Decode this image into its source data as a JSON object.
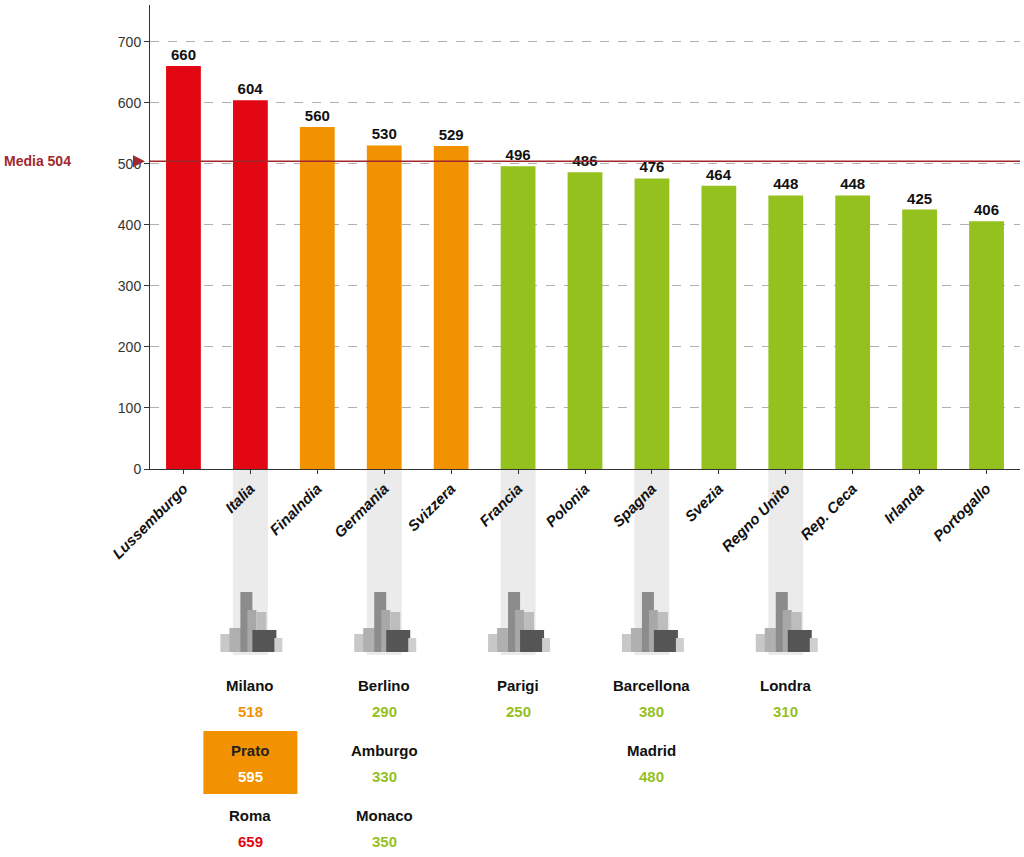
{
  "chart_data": {
    "type": "bar",
    "categories": [
      "Lussemburgo",
      "Italia",
      "Finalndia",
      "Germania",
      "Svizzera",
      "Francia",
      "Polonia",
      "Spagna",
      "Svezia",
      "Regno Unito",
      "Rep. Ceca",
      "Irlanda",
      "Portogallo"
    ],
    "values": [
      660,
      604,
      560,
      530,
      529,
      496,
      486,
      476,
      464,
      448,
      448,
      425,
      406
    ],
    "colors": [
      "#e30613",
      "#e30613",
      "#f39200",
      "#f39200",
      "#f39200",
      "#95c11f",
      "#95c11f",
      "#95c11f",
      "#95c11f",
      "#95c11f",
      "#95c11f",
      "#95c11f",
      "#95c11f"
    ],
    "ylim": [
      0,
      760
    ],
    "yticks": [
      0,
      100,
      200,
      300,
      400,
      500,
      600,
      700
    ],
    "grid": true,
    "data_labels": true,
    "mean": {
      "label": "Media 504",
      "value": 504,
      "color": "#a0282d"
    },
    "cities": [
      {
        "category": "Italia",
        "items": [
          {
            "name": "Milano",
            "value": 518,
            "color": "#f39200"
          },
          {
            "name": "Prato",
            "value": 595,
            "color": "#f39200",
            "highlight": true
          },
          {
            "name": "Roma",
            "value": 659,
            "color": "#e30613"
          }
        ]
      },
      {
        "category": "Germania",
        "items": [
          {
            "name": "Berlino",
            "value": 290,
            "color": "#95c11f"
          },
          {
            "name": "Amburgo",
            "value": 330,
            "color": "#95c11f"
          },
          {
            "name": "Monaco",
            "value": 350,
            "color": "#95c11f"
          }
        ]
      },
      {
        "category": "Francia",
        "items": [
          {
            "name": "Parigi",
            "value": 250,
            "color": "#95c11f"
          }
        ]
      },
      {
        "category": "Spagna",
        "items": [
          {
            "name": "Barcellona",
            "value": 380,
            "color": "#95c11f"
          },
          {
            "name": "Madrid",
            "value": 480,
            "color": "#95c11f"
          }
        ]
      },
      {
        "category": "Regno Unito",
        "items": [
          {
            "name": "Londra",
            "value": 310,
            "color": "#95c11f"
          }
        ]
      }
    ]
  }
}
